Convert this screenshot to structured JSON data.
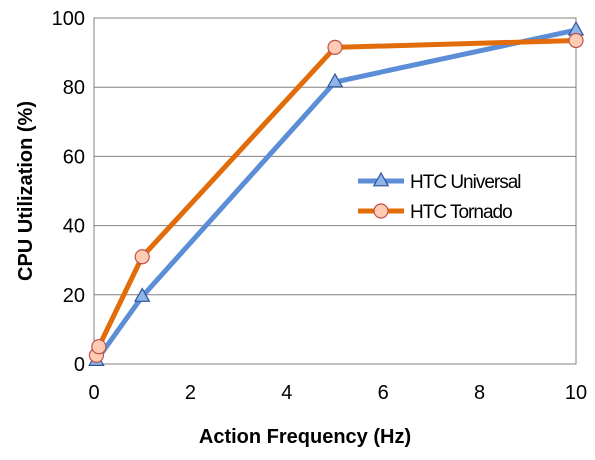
{
  "chart_data": {
    "type": "line",
    "title": "",
    "xlabel": "Action Frequency (Hz)",
    "ylabel": "CPU Utilization (%)",
    "xlim": [
      0,
      10
    ],
    "ylim": [
      0,
      100
    ],
    "xticks": [
      0,
      2,
      4,
      6,
      8,
      10
    ],
    "yticks": [
      0,
      20,
      40,
      60,
      80,
      100
    ],
    "grid": "horizontal",
    "legend_position": "center-right",
    "series": [
      {
        "name": "HTC Universal",
        "color": "#5B8ED6",
        "marker": "triangle",
        "marker_fill": "#8EB4E8",
        "marker_edge": "#2F5597",
        "points": [
          {
            "x": 0.05,
            "y": 1
          },
          {
            "x": 1,
            "y": 19.5
          },
          {
            "x": 5,
            "y": 81.5
          },
          {
            "x": 10,
            "y": 96.5
          }
        ]
      },
      {
        "name": "HTC Tornado",
        "color": "#E36C0A",
        "marker": "circle",
        "marker_fill": "#FFCCB3",
        "marker_edge": "#C0504D",
        "points": [
          {
            "x": 0.05,
            "y": 2.5
          },
          {
            "x": 0.1,
            "y": 5
          },
          {
            "x": 1,
            "y": 31
          },
          {
            "x": 5,
            "y": 91.5
          },
          {
            "x": 10,
            "y": 93.5
          }
        ]
      }
    ]
  }
}
